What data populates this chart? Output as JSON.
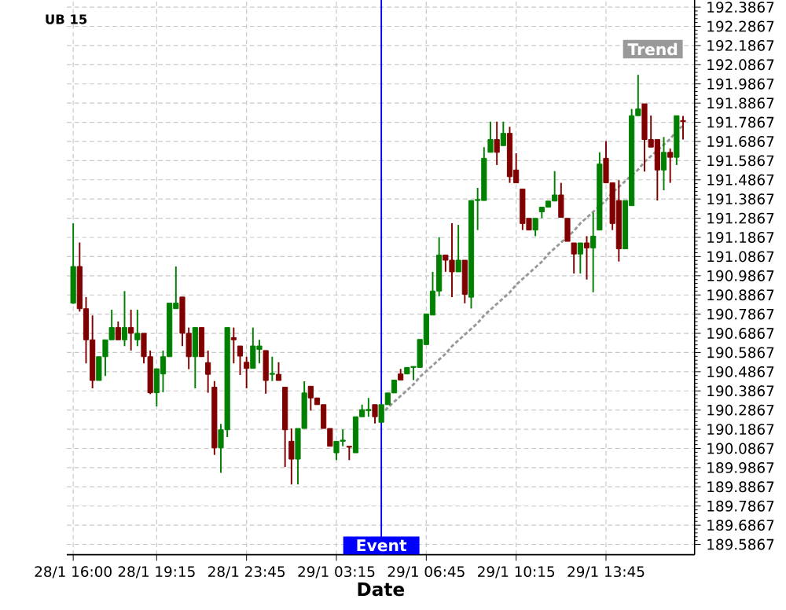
{
  "chart_data": {
    "type": "candlestick",
    "title": "UB 15",
    "xlabel": "Date",
    "categories": [
      "28/1 16:00",
      null,
      null,
      null,
      null,
      null,
      null,
      null,
      null,
      null,
      null,
      null,
      null,
      "28/1 19:15",
      null,
      null,
      null,
      null,
      null,
      null,
      null,
      null,
      null,
      null,
      null,
      null,
      null,
      "28/1 23:45",
      null,
      null,
      null,
      null,
      null,
      null,
      null,
      null,
      null,
      null,
      null,
      null,
      null,
      "29/1 03:15",
      null,
      null,
      null,
      null,
      null,
      null,
      null,
      null,
      null,
      null,
      null,
      null,
      null,
      "29/1 06:45",
      null,
      null,
      null,
      null,
      null,
      null,
      null,
      null,
      null,
      null,
      null,
      null,
      null,
      "29/1 10:15",
      null,
      null,
      null,
      null,
      null,
      null,
      null,
      null,
      null,
      null,
      null,
      null,
      null,
      "29/1 13:45",
      null,
      null,
      null,
      null,
      null,
      null,
      null,
      null,
      null,
      null,
      null,
      null
    ],
    "ylim": [
      189.533,
      192.424
    ],
    "yticks": [
      189.5867,
      189.6867,
      189.7867,
      189.8867,
      189.9867,
      190.0867,
      190.1867,
      190.2867,
      190.3867,
      190.4867,
      190.5867,
      190.6867,
      190.7867,
      190.8867,
      190.9867,
      191.0867,
      191.1867,
      191.2867,
      191.3867,
      191.4867,
      191.5867,
      191.6867,
      191.7867,
      191.8867,
      191.9867,
      192.0867,
      192.1867,
      192.2867,
      192.3867
    ],
    "grid": true,
    "ohlc": [
      [
        190.844,
        191.26,
        190.84,
        191.035
      ],
      [
        191.035,
        191.16,
        190.8,
        190.815
      ],
      [
        190.815,
        190.876,
        190.53,
        190.653
      ],
      [
        190.653,
        190.78,
        190.4,
        190.441
      ],
      [
        190.441,
        190.565,
        190.441,
        190.565
      ],
      [
        190.565,
        190.653,
        190.465,
        190.653
      ],
      [
        190.653,
        190.81,
        190.653,
        190.717
      ],
      [
        190.717,
        190.748,
        190.653,
        190.653
      ],
      [
        190.653,
        190.907,
        190.62,
        190.717
      ],
      [
        190.717,
        190.81,
        190.597,
        190.687
      ],
      [
        190.653,
        190.81,
        190.62,
        190.687
      ],
      [
        190.687,
        190.687,
        190.53,
        190.565
      ],
      [
        190.565,
        190.597,
        190.37,
        190.377
      ],
      [
        190.377,
        190.502,
        190.306,
        190.502
      ],
      [
        190.475,
        190.597,
        190.38,
        190.565
      ],
      [
        190.565,
        190.844,
        190.565,
        190.844
      ],
      [
        190.815,
        191.035,
        190.815,
        190.844
      ],
      [
        190.876,
        190.876,
        190.62,
        190.687
      ],
      [
        190.687,
        190.717,
        190.5,
        190.565
      ],
      [
        190.565,
        190.717,
        190.4,
        190.717
      ],
      [
        190.717,
        190.717,
        190.565,
        190.565
      ],
      [
        190.534,
        190.597,
        190.377,
        190.473
      ],
      [
        190.406,
        190.438,
        190.053,
        190.09
      ],
      [
        190.09,
        190.215,
        189.96,
        190.184
      ],
      [
        190.184,
        190.717,
        190.146,
        190.717
      ],
      [
        190.664,
        190.717,
        190.53,
        190.653
      ],
      [
        190.621,
        190.621,
        190.47,
        190.568
      ],
      [
        190.536,
        190.565,
        190.4,
        190.504
      ],
      [
        190.504,
        190.717,
        190.504,
        190.621
      ],
      [
        190.603,
        190.653,
        190.53,
        190.621
      ],
      [
        190.597,
        190.597,
        190.372,
        190.441
      ],
      [
        190.473,
        190.565,
        190.438,
        190.478
      ],
      [
        190.473,
        190.536,
        190.441,
        190.441
      ],
      [
        190.406,
        190.406,
        189.99,
        190.184
      ],
      [
        190.124,
        190.191,
        189.899,
        190.031
      ],
      [
        190.031,
        190.191,
        189.899,
        190.191
      ],
      [
        190.191,
        190.437,
        190.191,
        190.376
      ],
      [
        190.411,
        190.411,
        190.284,
        190.35
      ],
      [
        190.35,
        190.35,
        190.315,
        190.315
      ],
      [
        190.315,
        190.315,
        190.191,
        190.191
      ],
      [
        190.191,
        190.191,
        190.098,
        190.098
      ],
      [
        190.064,
        190.124,
        190.026,
        190.124
      ],
      [
        190.124,
        190.186,
        190.098,
        190.13
      ],
      [
        190.098,
        190.098,
        190.026,
        190.093
      ],
      [
        190.064,
        190.252,
        190.064,
        190.252
      ],
      [
        190.252,
        190.315,
        190.252,
        190.289
      ],
      [
        190.284,
        190.35,
        190.252,
        190.29
      ],
      [
        190.315,
        190.315,
        190.217,
        190.252
      ],
      [
        190.223,
        190.315,
        190.223,
        190.315
      ],
      [
        190.315,
        190.376,
        190.315,
        190.376
      ],
      [
        190.376,
        190.443,
        190.376,
        190.443
      ],
      [
        190.475,
        190.501,
        190.443,
        190.443
      ],
      [
        190.475,
        190.509,
        190.475,
        190.509
      ],
      [
        190.509,
        190.514,
        190.443,
        190.514
      ],
      [
        190.509,
        190.655,
        190.509,
        190.655
      ],
      [
        190.628,
        190.788,
        190.628,
        190.788
      ],
      [
        190.782,
        191.007,
        190.782,
        190.907
      ],
      [
        190.907,
        191.188,
        190.88,
        191.095
      ],
      [
        191.095,
        191.095,
        191.007,
        191.068
      ],
      [
        191.068,
        191.26,
        190.875,
        191.007
      ],
      [
        191.007,
        191.252,
        191.007,
        191.068
      ],
      [
        191.068,
        191.068,
        190.843,
        190.89
      ],
      [
        190.875,
        191.379,
        190.816,
        191.379
      ],
      [
        191.379,
        191.445,
        191.225,
        191.384
      ],
      [
        191.379,
        191.657,
        191.379,
        191.599
      ],
      [
        191.63,
        191.79,
        191.63,
        191.697
      ],
      [
        191.697,
        191.79,
        191.564,
        191.63
      ],
      [
        191.665,
        191.79,
        191.665,
        191.729
      ],
      [
        191.729,
        191.763,
        191.471,
        191.503
      ],
      [
        191.538,
        191.625,
        191.471,
        191.471
      ],
      [
        191.439,
        191.439,
        191.225,
        191.259
      ],
      [
        191.286,
        191.286,
        191.225,
        191.225
      ],
      [
        191.225,
        191.286,
        191.193,
        191.286
      ],
      [
        191.32,
        191.344,
        191.287,
        191.344
      ],
      [
        191.344,
        191.376,
        191.344,
        191.376
      ],
      [
        191.376,
        191.532,
        191.376,
        191.408
      ],
      [
        191.408,
        191.471,
        191.291,
        191.291
      ],
      [
        191.286,
        191.286,
        191.166,
        191.166
      ],
      [
        191.158,
        191.158,
        190.999,
        191.1
      ],
      [
        191.1,
        191.158,
        190.999,
        191.158
      ],
      [
        191.158,
        191.193,
        190.967,
        191.132
      ],
      [
        191.132,
        191.316,
        190.901,
        191.193
      ],
      [
        191.225,
        191.63,
        191.225,
        191.569
      ],
      [
        191.599,
        191.689,
        191.471,
        191.471
      ],
      [
        191.471,
        191.471,
        191.225,
        191.259
      ],
      [
        191.379,
        191.485,
        191.061,
        191.127
      ],
      [
        191.127,
        191.379,
        191.127,
        191.379
      ],
      [
        191.352,
        191.856,
        191.352,
        191.821
      ],
      [
        191.821,
        192.034,
        191.821,
        191.856
      ],
      [
        191.883,
        191.883,
        191.53,
        191.697
      ],
      [
        191.697,
        191.822,
        191.657,
        191.657
      ],
      [
        191.697,
        191.697,
        191.379,
        191.538
      ],
      [
        191.538,
        191.71,
        191.432,
        191.63
      ],
      [
        191.63,
        191.65,
        191.471,
        191.604
      ],
      [
        191.604,
        191.821,
        191.564,
        191.821
      ],
      [
        191.796,
        191.82,
        191.697,
        191.79
      ]
    ],
    "colors": [
      "#008000",
      "#800000",
      "#800000",
      "#800000",
      "#008000",
      "#008000",
      "#008000",
      "#800000",
      "#008000",
      "#800000",
      "#008000",
      "#800000",
      "#800000",
      "#008000",
      "#008000",
      "#008000",
      "#008000",
      "#800000",
      "#800000",
      "#008000",
      "#800000",
      "#800000",
      "#800000",
      "#008000",
      "#008000",
      "#800000",
      "#800000",
      "#800000",
      "#008000",
      "#008000",
      "#800000",
      "#008000",
      "#800000",
      "#800000",
      "#800000",
      "#008000",
      "#008000",
      "#800000",
      "#800000",
      "#800000",
      "#800000",
      "#008000",
      "#008000",
      "#800000",
      "#008000",
      "#008000",
      "#008000",
      "#800000",
      "#008000",
      "#008000",
      "#008000",
      "#800000",
      "#008000",
      "#008000",
      "#008000",
      "#008000",
      "#008000",
      "#008000",
      "#800000",
      "#800000",
      "#008000",
      "#800000",
      "#008000",
      "#008000",
      "#008000",
      "#008000",
      "#800000",
      "#008000",
      "#800000",
      "#800000",
      "#800000",
      "#800000",
      "#008000",
      "#008000",
      "#008000",
      "#008000",
      "#800000",
      "#800000",
      "#800000",
      "#008000",
      "#800000",
      "#008000",
      "#008000",
      "#800000",
      "#800000",
      "#800000",
      "#008000",
      "#008000",
      "#008000",
      "#800000",
      "#800000",
      "#800000",
      "#008000",
      "#800000",
      "#008000",
      "#800000"
    ],
    "series": [
      {
        "type": "line",
        "name": "Trend",
        "color": "#999999",
        "line_style": "dashed",
        "values": [
          null,
          null,
          null,
          null,
          null,
          null,
          null,
          null,
          null,
          null,
          null,
          null,
          null,
          null,
          null,
          null,
          null,
          null,
          null,
          null,
          null,
          null,
          null,
          null,
          null,
          null,
          null,
          null,
          null,
          null,
          null,
          null,
          null,
          null,
          null,
          null,
          null,
          null,
          null,
          null,
          null,
          null,
          null,
          null,
          null,
          null,
          null,
          null,
          190.26,
          190.3,
          190.33,
          190.36,
          190.39,
          190.42,
          190.46,
          190.49,
          190.52,
          190.55,
          190.58,
          190.62,
          190.65,
          190.68,
          190.71,
          190.74,
          190.78,
          190.81,
          190.84,
          190.87,
          190.9,
          190.94,
          190.97,
          191.0,
          191.03,
          191.06,
          191.1,
          191.13,
          191.16,
          191.19,
          191.22,
          191.26,
          191.29,
          191.32,
          191.35,
          191.38,
          191.42,
          191.45,
          191.48,
          191.51,
          191.54,
          191.58,
          191.61,
          191.64,
          191.67,
          191.7,
          191.74,
          191.77
        ]
      }
    ],
    "annotations": [
      "Event"
    ]
  }
}
